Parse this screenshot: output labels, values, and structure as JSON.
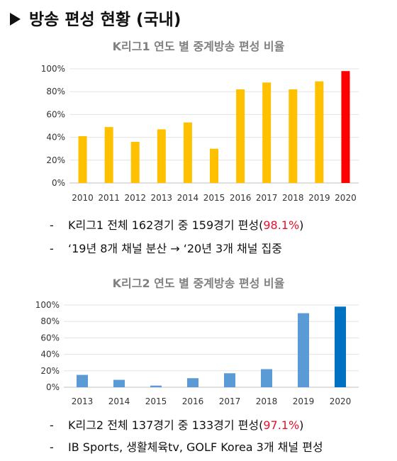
{
  "heading": "방송 편성 현황 (국내)",
  "chart_data": [
    {
      "type": "bar",
      "title": "K리그1 연도 별 중계방송 편성 비율",
      "categories": [
        "2010",
        "2011",
        "2012",
        "2013",
        "2014",
        "2015",
        "2016",
        "2017",
        "2018",
        "2019",
        "2020"
      ],
      "values": [
        41,
        49,
        36,
        47,
        53,
        30,
        82,
        88,
        82,
        89,
        98
      ],
      "ylim": [
        0,
        100
      ],
      "yticks": [
        "0%",
        "20%",
        "40%",
        "60%",
        "80%",
        "100%"
      ],
      "colors": {
        "bar": "#ffc000",
        "highlight": "#ff0000",
        "highlight_index": 10
      },
      "grid": true
    },
    {
      "type": "bar",
      "title": "K리그2 연도 별 중계방송 편성 비율",
      "categories": [
        "2013",
        "2014",
        "2015",
        "2016",
        "2017",
        "2018",
        "2019",
        "2020"
      ],
      "values": [
        15,
        9,
        2,
        11,
        17,
        22,
        90,
        98
      ],
      "ylim": [
        0,
        100
      ],
      "yticks": [
        "0%",
        "20%",
        "40%",
        "60%",
        "80%",
        "100%"
      ],
      "colors": {
        "bar": "#5b9bd5",
        "highlight": "#0070c0",
        "highlight_index": 7
      },
      "grid": true
    }
  ],
  "bullets1": {
    "line1_pre": "K리그1 전체 162경기 중 159경기 편성(",
    "line1_pct": "98.1%",
    "line1_post": ")",
    "line2": "‘19년 8개 채널 분산 → ‘20년 3개 채널 집중"
  },
  "bullets2": {
    "line1_pre": "K리그2 전체 137경기 중 133경기 편성(",
    "line1_pct": "97.1%",
    "line1_post": ")",
    "line2": "IB Sports, 생활체육tv, GOLF Korea 3개 채널 편성"
  },
  "dash": "-"
}
